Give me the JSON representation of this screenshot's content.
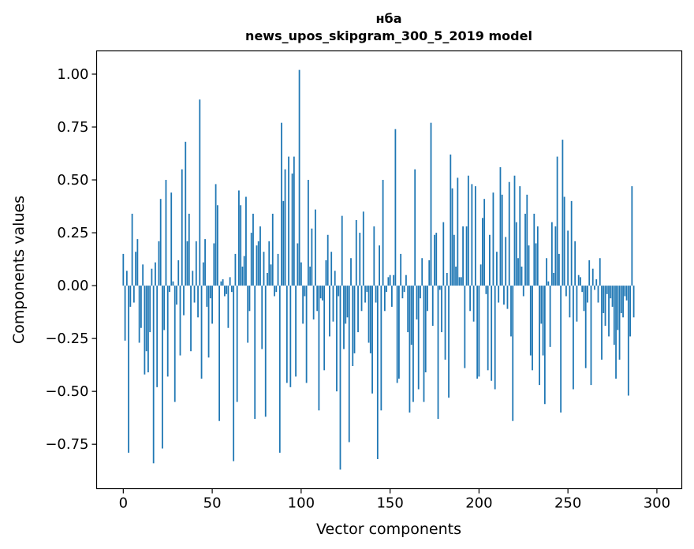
{
  "chart_data": {
    "type": "bar",
    "title": "нба",
    "subtitle": "news_upos_skipgram_300_5_2019 model",
    "xlabel": "Vector components",
    "ylabel": "Components values",
    "xlim": [
      -15,
      314
    ],
    "ylim": [
      -0.96,
      1.11
    ],
    "xticks": [
      0,
      50,
      100,
      150,
      200,
      250,
      300
    ],
    "xtick_labels": [
      "0",
      "50",
      "100",
      "150",
      "200",
      "250",
      "300"
    ],
    "yticks": [
      -0.75,
      -0.5,
      -0.25,
      0.0,
      0.25,
      0.5,
      0.75,
      1.0
    ],
    "ytick_labels": [
      "−0.75",
      "−0.50",
      "−0.25",
      "0.00",
      "0.25",
      "0.50",
      "0.75",
      "1.00"
    ],
    "grid": false,
    "bar_color": "#1f77b4",
    "values": [
      0.15,
      -0.26,
      0.07,
      -0.79,
      -0.1,
      0.34,
      -0.08,
      0.16,
      0.22,
      -0.27,
      -0.2,
      0.1,
      -0.42,
      -0.31,
      -0.41,
      -0.22,
      0.08,
      -0.84,
      0.11,
      -0.48,
      0.21,
      0.41,
      -0.77,
      -0.21,
      0.5,
      -0.43,
      -0.03,
      0.44,
      0.02,
      -0.55,
      -0.09,
      0.12,
      -0.33,
      0.55,
      -0.14,
      0.68,
      0.21,
      0.34,
      -0.31,
      0.07,
      -0.08,
      0.21,
      -0.15,
      0.88,
      -0.44,
      0.11,
      0.22,
      -0.1,
      -0.34,
      -0.06,
      -0.18,
      0.2,
      0.48,
      0.38,
      -0.64,
      0.02,
      0.03,
      -0.05,
      -0.04,
      -0.2,
      0.04,
      -0.03,
      -0.83,
      0.15,
      -0.55,
      0.45,
      0.38,
      0.09,
      0.14,
      0.42,
      -0.27,
      -0.12,
      0.25,
      0.34,
      -0.63,
      0.19,
      0.21,
      0.28,
      -0.3,
      0.16,
      -0.62,
      0.06,
      0.21,
      0.1,
      0.34,
      -0.05,
      -0.03,
      0.15,
      -0.79,
      0.77,
      0.4,
      0.55,
      -0.46,
      0.61,
      -0.48,
      0.53,
      0.61,
      -0.43,
      0.2,
      1.02,
      0.11,
      -0.18,
      -0.05,
      -0.46,
      0.5,
      0.09,
      0.27,
      -0.16,
      0.36,
      -0.12,
      -0.59,
      -0.06,
      -0.07,
      -0.4,
      0.12,
      0.24,
      -0.24,
      0.16,
      -0.17,
      0.07,
      -0.5,
      -0.05,
      -0.87,
      0.33,
      -0.3,
      -0.18,
      -0.15,
      -0.74,
      0.13,
      -0.38,
      -0.32,
      0.31,
      -0.22,
      0.25,
      -0.12,
      0.35,
      -0.08,
      -0.03,
      -0.27,
      -0.32,
      -0.51,
      0.28,
      -0.08,
      -0.82,
      0.19,
      -0.59,
      0.5,
      -0.12,
      -0.03,
      0.04,
      0.05,
      -0.1,
      0.05,
      0.74,
      -0.46,
      -0.44,
      0.15,
      -0.06,
      -0.03,
      0.05,
      -0.22,
      -0.6,
      -0.28,
      -0.55,
      0.55,
      -0.16,
      -0.49,
      -0.06,
      0.13,
      -0.55,
      -0.41,
      -0.12,
      0.12,
      0.77,
      -0.19,
      0.24,
      0.25,
      -0.63,
      -0.02,
      -0.22,
      0.3,
      -0.35,
      0.06,
      -0.53,
      0.62,
      0.46,
      0.24,
      0.09,
      0.51,
      0.04,
      0.04,
      0.28,
      -0.39,
      0.28,
      0.52,
      -0.12,
      0.48,
      -0.17,
      0.47,
      -0.44,
      -0.43,
      0.1,
      0.32,
      0.41,
      -0.04,
      -0.4,
      0.24,
      -0.45,
      0.44,
      -0.49,
      0.16,
      -0.08,
      0.56,
      0.43,
      -0.09,
      0.23,
      -0.11,
      0.49,
      -0.24,
      -0.64,
      0.52,
      0.3,
      0.13,
      0.47,
      0.09,
      -0.05,
      0.34,
      0.43,
      0.19,
      -0.33,
      -0.4,
      0.34,
      0.2,
      0.28,
      -0.47,
      -0.18,
      -0.33,
      -0.56,
      0.13,
      0.02,
      -0.29,
      0.3,
      0.06,
      0.28,
      0.61,
      0.15,
      -0.6,
      0.69,
      0.42,
      -0.05,
      0.26,
      -0.15,
      0.4,
      -0.49,
      0.21,
      -0.17,
      0.05,
      0.04,
      -0.03,
      -0.12,
      -0.39,
      -0.08,
      0.12,
      -0.47,
      0.08,
      -0.02,
      0.03,
      -0.08,
      0.13,
      -0.35,
      -0.13,
      -0.19,
      -0.04,
      -0.24,
      -0.06,
      -0.1,
      -0.28,
      -0.44,
      -0.21,
      -0.35,
      -0.13,
      -0.15,
      -0.05,
      -0.07,
      -0.52,
      -0.24,
      0.47,
      -0.15
    ]
  }
}
